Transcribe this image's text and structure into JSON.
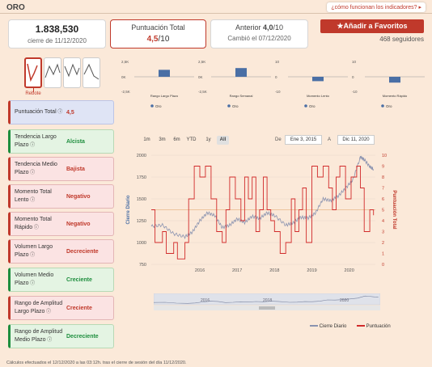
{
  "header": {
    "title": "ORO",
    "how_link": "¿cómo funcionan los indicadores? ▸"
  },
  "cards": {
    "close": {
      "value": "1.838,530",
      "sub": "cierre de 11/12/2020"
    },
    "score": {
      "label": "Puntuación Total",
      "value": "4,5",
      "suffix": "/10"
    },
    "previous": {
      "label": "Anterior",
      "value": "4,0",
      "suffix": "/10",
      "sub": "Cambió el 07/12/2020"
    }
  },
  "favorites": {
    "button": "Añadir a Favoritos",
    "followers": "468 seguidores"
  },
  "rebote_label": "Rebote",
  "mini_charts": [
    {
      "name": "Rango Largo Plazo",
      "ymax": "2,5K",
      "ymid": "0K",
      "ymin": "-2,5K",
      "value": 1.2,
      "legend": "Oro"
    },
    {
      "name": "Rango Semanal",
      "ymax": "2,5K",
      "ymid": "0K",
      "ymin": "-2,5K",
      "value": 1.5,
      "legend": "Oro"
    },
    {
      "name": "Momento Lento",
      "ymax": "10",
      "ymid": "0",
      "ymin": "-10",
      "value": -3,
      "legend": "Oro"
    },
    {
      "name": "Momento Rápido",
      "ymax": "10",
      "ymid": "0",
      "ymin": "-10",
      "value": -4,
      "legend": "Oro"
    }
  ],
  "indicators": [
    {
      "label": "Puntuación Total",
      "value": "4,5",
      "color": "red",
      "style": "blue"
    },
    {
      "label": "Tendencia Largo Plazo",
      "value": "Alcista",
      "color": "green",
      "style": "green"
    },
    {
      "label": "Tendencia Medio Plazo",
      "value": "Bajista",
      "color": "red",
      "style": "red"
    },
    {
      "label": "Momento Total Lento",
      "value": "Negativo",
      "color": "red",
      "style": "red"
    },
    {
      "label": "Momento Total Rápido",
      "value": "Negativo",
      "color": "red",
      "style": "red"
    },
    {
      "label": "Volumen Largo Plazo",
      "value": "Decreciente",
      "color": "red",
      "style": "red"
    },
    {
      "label": "Volumen Medio Plazo",
      "value": "Creciente",
      "color": "green",
      "style": "green"
    },
    {
      "label": "Rango de Amplitud Largo Plazo",
      "value": "Creciente",
      "color": "red",
      "style": "red"
    },
    {
      "label": "Rango de Amplitud Medio Plazo",
      "value": "Decreciente",
      "color": "green",
      "style": "green"
    }
  ],
  "range_buttons": [
    "1m",
    "3m",
    "6m",
    "YTD",
    "1y",
    "All"
  ],
  "active_range": "All",
  "date_range": {
    "from_label": "De",
    "from": "Ene 3, 2015",
    "to_label": "A",
    "to": "Dic 11, 2020"
  },
  "chart_data": {
    "type": "line",
    "x_ticks": [
      "2016",
      "2017",
      "2018",
      "2019",
      "2020"
    ],
    "y_left_ticks": [
      "750",
      "1000",
      "1250",
      "1500",
      "1750",
      "2000"
    ],
    "y_right_ticks": [
      "0",
      "1",
      "2",
      "3",
      "4",
      "5",
      "6",
      "7",
      "8",
      "9",
      "10"
    ],
    "ylabel_left": "Cierre Diario",
    "ylabel_right": "Puntuación Total",
    "ylim_left": [
      750,
      2000
    ],
    "ylim_right": [
      0,
      10
    ],
    "threshold_right": 5,
    "series": [
      {
        "name": "Cierre Diario",
        "color": "#8a93b0",
        "points": [
          [
            2015.0,
            1185
          ],
          [
            2015.3,
            1200
          ],
          [
            2015.6,
            1100
          ],
          [
            2015.9,
            1065
          ],
          [
            2016.1,
            1120
          ],
          [
            2016.3,
            1250
          ],
          [
            2016.5,
            1340
          ],
          [
            2016.7,
            1310
          ],
          [
            2016.9,
            1170
          ],
          [
            2017.1,
            1200
          ],
          [
            2017.3,
            1270
          ],
          [
            2017.5,
            1230
          ],
          [
            2017.7,
            1300
          ],
          [
            2017.9,
            1275
          ],
          [
            2018.1,
            1340
          ],
          [
            2018.3,
            1310
          ],
          [
            2018.6,
            1200
          ],
          [
            2018.8,
            1225
          ],
          [
            2019.0,
            1290
          ],
          [
            2019.2,
            1280
          ],
          [
            2019.4,
            1340
          ],
          [
            2019.6,
            1500
          ],
          [
            2019.8,
            1480
          ],
          [
            2020.0,
            1530
          ],
          [
            2020.2,
            1620
          ],
          [
            2020.4,
            1720
          ],
          [
            2020.6,
            1980
          ],
          [
            2020.7,
            1950
          ],
          [
            2020.85,
            1870
          ],
          [
            2020.95,
            1838
          ]
        ]
      },
      {
        "name": "Puntuación",
        "color": "#d12b2b",
        "points": [
          [
            2015.0,
            5
          ],
          [
            2015.1,
            2
          ],
          [
            2015.3,
            3
          ],
          [
            2015.4,
            1
          ],
          [
            2015.6,
            2
          ],
          [
            2015.7,
            0.5
          ],
          [
            2015.9,
            2
          ],
          [
            2016.0,
            6
          ],
          [
            2016.15,
            9
          ],
          [
            2016.3,
            8
          ],
          [
            2016.45,
            9
          ],
          [
            2016.6,
            6
          ],
          [
            2016.75,
            3
          ],
          [
            2016.9,
            2
          ],
          [
            2017.0,
            5
          ],
          [
            2017.1,
            8
          ],
          [
            2017.25,
            6
          ],
          [
            2017.4,
            4
          ],
          [
            2017.5,
            8
          ],
          [
            2017.6,
            6
          ],
          [
            2017.7,
            8
          ],
          [
            2017.8,
            3
          ],
          [
            2017.9,
            5
          ],
          [
            2018.0,
            8
          ],
          [
            2018.1,
            5
          ],
          [
            2018.2,
            4
          ],
          [
            2018.3,
            3
          ],
          [
            2018.45,
            1
          ],
          [
            2018.6,
            2
          ],
          [
            2018.75,
            6
          ],
          [
            2018.85,
            3
          ],
          [
            2018.95,
            5
          ],
          [
            2019.05,
            7
          ],
          [
            2019.15,
            2
          ],
          [
            2019.3,
            9
          ],
          [
            2019.45,
            8
          ],
          [
            2019.6,
            9
          ],
          [
            2019.75,
            7
          ],
          [
            2019.85,
            5
          ],
          [
            2019.95,
            8
          ],
          [
            2020.05,
            9
          ],
          [
            2020.2,
            6
          ],
          [
            2020.35,
            8
          ],
          [
            2020.5,
            9
          ],
          [
            2020.6,
            7
          ],
          [
            2020.7,
            3
          ],
          [
            2020.85,
            5
          ],
          [
            2020.95,
            4.5
          ]
        ]
      }
    ]
  },
  "navigator": {
    "labels": [
      "2016",
      "2018",
      "2020"
    ]
  },
  "legend": [
    "Cierre Diario",
    "Puntuación"
  ],
  "footer": "Cálculos efectuados el 12/12/2020 a las 03:12h. tras el cierre de sesión del día 11/12/2020."
}
